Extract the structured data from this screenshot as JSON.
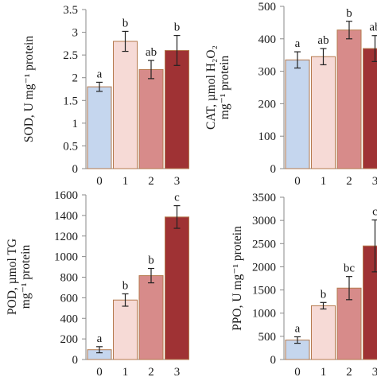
{
  "chart_data": [
    {
      "type": "bar",
      "categories": [
        "0",
        "1",
        "2",
        "3"
      ],
      "values": [
        1.8,
        2.8,
        2.18,
        2.6
      ],
      "errors": [
        0.1,
        0.22,
        0.2,
        0.33
      ],
      "letters": [
        "a",
        "b",
        "ab",
        "b"
      ],
      "ylabel_lines": [
        "SOD, U mg⁻¹ protein"
      ],
      "ylim": [
        0,
        3.5
      ],
      "yticks": [
        0,
        0.5,
        1,
        1.5,
        2,
        2.5,
        3,
        3.5
      ],
      "ytick_labels": [
        "0",
        "0.5",
        "1",
        "1.5",
        "2",
        "2.5",
        "3",
        "3.5"
      ],
      "grid": false
    },
    {
      "type": "bar",
      "categories": [
        "0",
        "1",
        "2",
        "3"
      ],
      "values": [
        335,
        345,
        427,
        370
      ],
      "errors": [
        25,
        25,
        27,
        40
      ],
      "letters": [
        "a",
        "ab",
        "b",
        "ab"
      ],
      "ylabel_lines": [
        "CAT, µmol H₂O₂",
        "mg⁻¹ protein"
      ],
      "ylim": [
        0,
        500
      ],
      "yticks": [
        0,
        100,
        200,
        300,
        400,
        500
      ],
      "ytick_labels": [
        "0",
        "100",
        "200",
        "300",
        "400",
        "500"
      ],
      "grid": false
    },
    {
      "type": "bar",
      "categories": [
        "0",
        "1",
        "2",
        "3"
      ],
      "values": [
        95,
        578,
        815,
        1385
      ],
      "errors": [
        30,
        60,
        70,
        110
      ],
      "letters": [
        "a",
        "b",
        "b",
        "c"
      ],
      "ylabel_lines": [
        "POD, µmol TG",
        "mg⁻¹ protein"
      ],
      "ylim": [
        0,
        1600
      ],
      "yticks": [
        0,
        200,
        400,
        600,
        800,
        1000,
        1200,
        1400,
        1600
      ],
      "ytick_labels": [
        "0",
        "200",
        "400",
        "600",
        "800",
        "1000",
        "1200",
        "1400",
        "1600"
      ],
      "grid": false
    },
    {
      "type": "bar",
      "categories": [
        "0",
        "1",
        "2",
        "3"
      ],
      "values": [
        420,
        1160,
        1540,
        2450
      ],
      "errors": [
        70,
        70,
        250,
        560
      ],
      "letters": [
        "a",
        "b",
        "bc",
        "c"
      ],
      "ylabel_lines": [
        "PPO, U mg⁻¹ protein"
      ],
      "ylim": [
        0,
        3500
      ],
      "yticks": [
        0,
        500,
        1000,
        1500,
        2000,
        2500,
        3000,
        3500
      ],
      "ytick_labels": [
        "0",
        "500",
        "1000",
        "1500",
        "2000",
        "2500",
        "3000",
        "3500"
      ],
      "grid": false
    }
  ],
  "colors": {
    "bar_fills": [
      "#c5d6ee",
      "#f6dad6",
      "#d78b8a",
      "#9f3234"
    ],
    "bar_edge": "#b57a4e",
    "axis": "#8a8a8a",
    "text": "#1a1a1a"
  }
}
